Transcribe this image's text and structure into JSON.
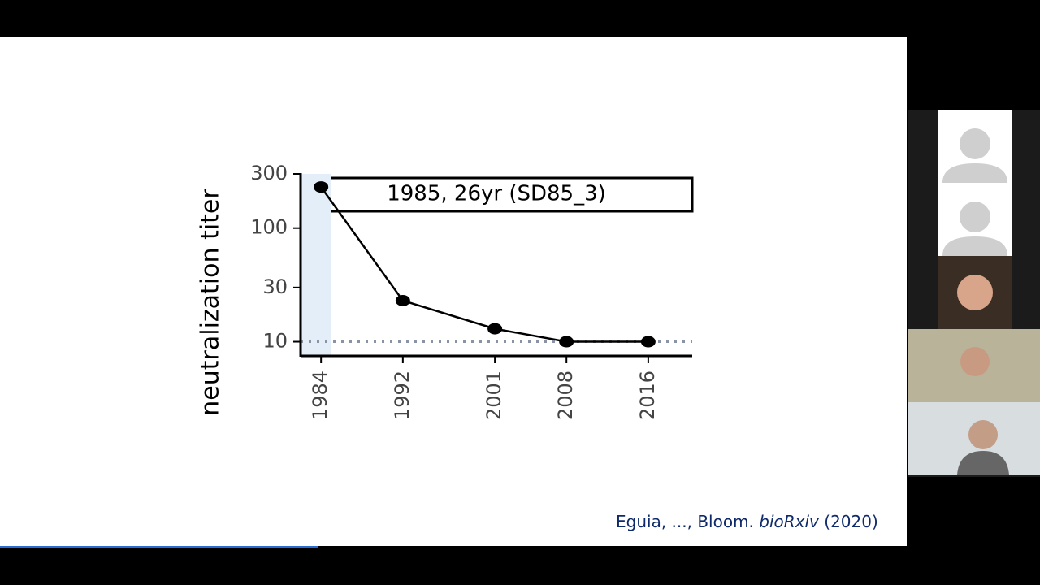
{
  "chart_data": {
    "type": "line",
    "title": "1985, 26yr (SD85_3)",
    "y_label": "neutralization titer",
    "x": [
      1984,
      1992,
      2001,
      2008,
      2016
    ],
    "series": [
      {
        "color": "#000000",
        "values": [
          230,
          23,
          13,
          10,
          10
        ]
      }
    ],
    "xlim": [
      1982,
      2020.3
    ],
    "xticks": [
      1984,
      1992,
      2001,
      2008,
      2016
    ],
    "ylim": [
      7.5,
      300
    ],
    "yticks": [
      10,
      30,
      100,
      300
    ],
    "y_scale": "log",
    "reference_line": 10,
    "shaded_xrange": [
      1982,
      1985
    ]
  },
  "citation": {
    "before": "Eguia, ..., Bloom.",
    "journal": "bioRxiv",
    "after": "(2020)"
  }
}
